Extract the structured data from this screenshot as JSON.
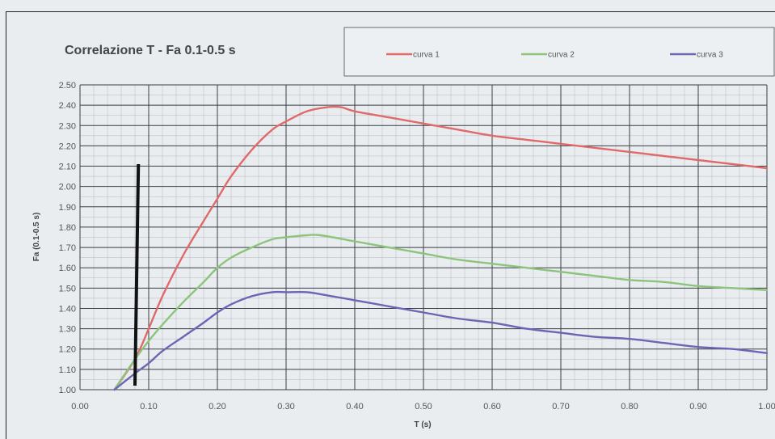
{
  "chart_data": {
    "type": "line",
    "title": "Correlazione T - Fa 0.1-0.5 s",
    "xlabel": "T (s)",
    "ylabel": "Fa (0.1-0.5 s)",
    "xlim": [
      0.0,
      1.0
    ],
    "ylim": [
      1.0,
      2.5
    ],
    "x_ticks": [
      "0.00",
      "0.10",
      "0.20",
      "0.30",
      "0.40",
      "0.50",
      "0.60",
      "0.70",
      "0.80",
      "0.90",
      "1.00"
    ],
    "y_ticks": [
      "1.00",
      "1.10",
      "1.20",
      "1.30",
      "1.40",
      "1.50",
      "1.60",
      "1.70",
      "1.80",
      "1.90",
      "2.00",
      "2.10",
      "2.20",
      "2.30",
      "2.40",
      "2.50"
    ],
    "grid": true,
    "legend_position": "top",
    "series": [
      {
        "name": "curva 1",
        "color": "#e06a6a",
        "x": [
          0.05,
          0.08,
          0.1,
          0.12,
          0.15,
          0.18,
          0.2,
          0.22,
          0.25,
          0.28,
          0.3,
          0.33,
          0.36,
          0.38,
          0.4,
          0.45,
          0.5,
          0.55,
          0.6,
          0.65,
          0.7,
          0.75,
          0.8,
          0.85,
          0.9,
          0.95,
          1.0
        ],
        "y": [
          1.0,
          1.15,
          1.3,
          1.46,
          1.66,
          1.83,
          1.94,
          2.05,
          2.18,
          2.28,
          2.32,
          2.37,
          2.39,
          2.39,
          2.37,
          2.34,
          2.31,
          2.28,
          2.25,
          2.23,
          2.21,
          2.19,
          2.17,
          2.15,
          2.13,
          2.11,
          2.09
        ]
      },
      {
        "name": "curva 2",
        "color": "#8cc47c",
        "x": [
          0.05,
          0.08,
          0.1,
          0.12,
          0.15,
          0.18,
          0.2,
          0.22,
          0.25,
          0.28,
          0.3,
          0.33,
          0.35,
          0.4,
          0.45,
          0.5,
          0.55,
          0.6,
          0.65,
          0.7,
          0.75,
          0.8,
          0.85,
          0.9,
          0.95,
          1.0
        ],
        "y": [
          1.0,
          1.15,
          1.24,
          1.32,
          1.43,
          1.53,
          1.6,
          1.65,
          1.7,
          1.74,
          1.75,
          1.76,
          1.76,
          1.73,
          1.7,
          1.67,
          1.64,
          1.62,
          1.6,
          1.58,
          1.56,
          1.54,
          1.53,
          1.51,
          1.5,
          1.49
        ]
      },
      {
        "name": "curva 3",
        "color": "#6a66b4",
        "x": [
          0.05,
          0.08,
          0.1,
          0.12,
          0.15,
          0.18,
          0.2,
          0.22,
          0.25,
          0.28,
          0.3,
          0.33,
          0.35,
          0.4,
          0.45,
          0.5,
          0.55,
          0.6,
          0.65,
          0.7,
          0.75,
          0.8,
          0.85,
          0.9,
          0.95,
          1.0
        ],
        "y": [
          1.0,
          1.08,
          1.13,
          1.19,
          1.26,
          1.33,
          1.38,
          1.42,
          1.46,
          1.48,
          1.48,
          1.48,
          1.47,
          1.44,
          1.41,
          1.38,
          1.35,
          1.33,
          1.3,
          1.28,
          1.26,
          1.25,
          1.23,
          1.21,
          1.2,
          1.18
        ]
      }
    ],
    "annotations": [
      {
        "type": "vertical-line",
        "color": "#111111",
        "x": [
          0.08,
          0.085
        ],
        "y": [
          1.02,
          2.11
        ]
      }
    ]
  }
}
